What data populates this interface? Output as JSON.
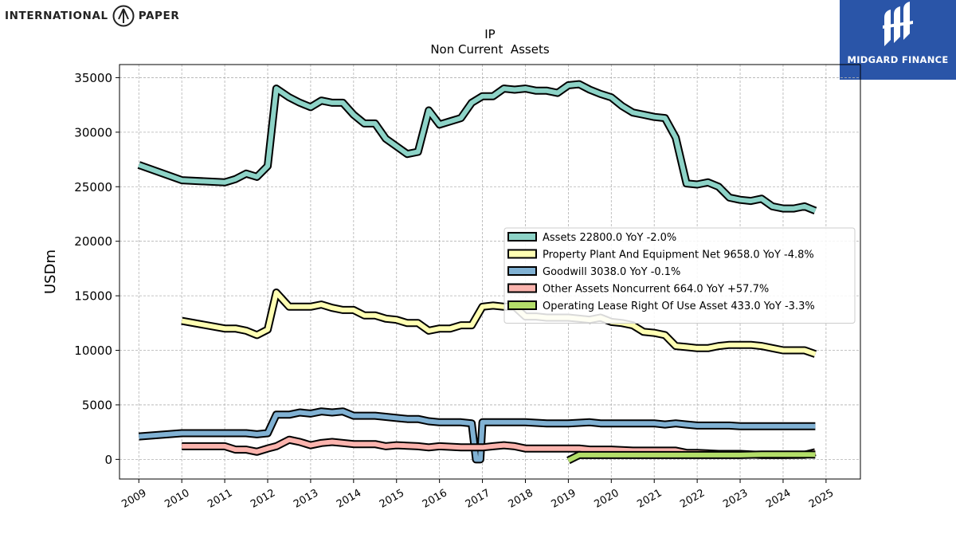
{
  "logo_left": {
    "text_left": "INTERNATIONAL",
    "text_right": "PAPER"
  },
  "logo_right": {
    "text": "MIDGARD FINANCE",
    "bg_color": "#2a55a8"
  },
  "chart_data": {
    "type": "line",
    "title": "IP",
    "subtitle": "Non Current  Assets",
    "xlabel": "",
    "ylabel": "USDm",
    "xlim": [
      2008.55,
      2025.8
    ],
    "ylim": [
      -1800,
      36200
    ],
    "x_ticks": [
      "2009",
      "2010",
      "2011",
      "2012",
      "2013",
      "2014",
      "2015",
      "2016",
      "2017",
      "2018",
      "2019",
      "2020",
      "2021",
      "2022",
      "2023",
      "2024",
      "2025"
    ],
    "y_ticks": [
      0,
      5000,
      10000,
      15000,
      20000,
      25000,
      30000,
      35000
    ],
    "y_tick_labels": [
      "0",
      "5000",
      "10000",
      "15000",
      "20000",
      "25000",
      "30000",
      "35000"
    ],
    "grid": true,
    "legend_position": "center-right",
    "series": [
      {
        "name": "Assets",
        "legend": "Assets  22800.0 YoY -2.0%",
        "color": "#8dd3c7",
        "points": [
          [
            2009.0,
            27000
          ],
          [
            2010.0,
            25600
          ],
          [
            2011.0,
            25400
          ],
          [
            2011.25,
            25700
          ],
          [
            2011.5,
            26200
          ],
          [
            2011.75,
            25900
          ],
          [
            2012.0,
            26900
          ],
          [
            2012.2,
            34000
          ],
          [
            2012.5,
            33200
          ],
          [
            2012.75,
            32700
          ],
          [
            2013.0,
            32300
          ],
          [
            2013.25,
            32900
          ],
          [
            2013.5,
            32700
          ],
          [
            2013.75,
            32700
          ],
          [
            2014.0,
            31600
          ],
          [
            2014.25,
            30800
          ],
          [
            2014.5,
            30800
          ],
          [
            2014.75,
            29400
          ],
          [
            2015.0,
            28700
          ],
          [
            2015.25,
            28000
          ],
          [
            2015.5,
            28200
          ],
          [
            2015.75,
            32000
          ],
          [
            2016.0,
            30700
          ],
          [
            2016.25,
            31000
          ],
          [
            2016.5,
            31300
          ],
          [
            2016.75,
            32700
          ],
          [
            2017.0,
            33300
          ],
          [
            2017.25,
            33300
          ],
          [
            2017.5,
            34000
          ],
          [
            2017.75,
            33900
          ],
          [
            2018.0,
            34000
          ],
          [
            2018.25,
            33800
          ],
          [
            2018.5,
            33800
          ],
          [
            2018.75,
            33600
          ],
          [
            2019.0,
            34300
          ],
          [
            2019.25,
            34400
          ],
          [
            2019.5,
            33900
          ],
          [
            2019.75,
            33500
          ],
          [
            2020.0,
            33200
          ],
          [
            2020.25,
            32400
          ],
          [
            2020.5,
            31800
          ],
          [
            2020.75,
            31600
          ],
          [
            2021.0,
            31400
          ],
          [
            2021.25,
            31300
          ],
          [
            2021.5,
            29500
          ],
          [
            2021.75,
            25300
          ],
          [
            2022.0,
            25200
          ],
          [
            2022.25,
            25400
          ],
          [
            2022.5,
            25000
          ],
          [
            2022.75,
            24000
          ],
          [
            2023.0,
            23800
          ],
          [
            2023.25,
            23700
          ],
          [
            2023.5,
            23900
          ],
          [
            2023.75,
            23200
          ],
          [
            2024.0,
            23000
          ],
          [
            2024.25,
            23000
          ],
          [
            2024.5,
            23200
          ],
          [
            2024.75,
            22800
          ]
        ]
      },
      {
        "name": "Property Plant And Equipment Net",
        "legend": "Property Plant And Equipment Net  9658.0 YoY -4.8%",
        "color": "#ffffb3",
        "points": [
          [
            2010.0,
            12700
          ],
          [
            2011.0,
            12000
          ],
          [
            2011.25,
            12000
          ],
          [
            2011.5,
            11800
          ],
          [
            2011.75,
            11400
          ],
          [
            2012.0,
            11900
          ],
          [
            2012.2,
            15300
          ],
          [
            2012.5,
            14000
          ],
          [
            2012.75,
            14000
          ],
          [
            2013.0,
            14000
          ],
          [
            2013.25,
            14200
          ],
          [
            2013.5,
            13900
          ],
          [
            2013.75,
            13700
          ],
          [
            2014.0,
            13700
          ],
          [
            2014.25,
            13200
          ],
          [
            2014.5,
            13200
          ],
          [
            2014.75,
            12900
          ],
          [
            2015.0,
            12800
          ],
          [
            2015.25,
            12500
          ],
          [
            2015.5,
            12500
          ],
          [
            2015.75,
            11800
          ],
          [
            2016.0,
            12000
          ],
          [
            2016.25,
            12000
          ],
          [
            2016.5,
            12300
          ],
          [
            2016.75,
            12300
          ],
          [
            2017.0,
            14000
          ],
          [
            2017.25,
            14100
          ],
          [
            2017.5,
            14000
          ],
          [
            2017.75,
            14000
          ],
          [
            2018.0,
            13100
          ],
          [
            2018.25,
            13100
          ],
          [
            2018.5,
            13000
          ],
          [
            2018.75,
            13000
          ],
          [
            2019.0,
            13000
          ],
          [
            2019.25,
            12900
          ],
          [
            2019.5,
            12800
          ],
          [
            2019.75,
            13000
          ],
          [
            2020.0,
            12600
          ],
          [
            2020.25,
            12500
          ],
          [
            2020.5,
            12300
          ],
          [
            2020.75,
            11700
          ],
          [
            2021.0,
            11600
          ],
          [
            2021.25,
            11400
          ],
          [
            2021.5,
            10400
          ],
          [
            2021.75,
            10300
          ],
          [
            2022.0,
            10200
          ],
          [
            2022.25,
            10200
          ],
          [
            2022.5,
            10400
          ],
          [
            2022.75,
            10500
          ],
          [
            2023.0,
            10500
          ],
          [
            2023.25,
            10500
          ],
          [
            2023.5,
            10400
          ],
          [
            2023.75,
            10200
          ],
          [
            2024.0,
            10000
          ],
          [
            2024.25,
            10000
          ],
          [
            2024.5,
            10000
          ],
          [
            2024.75,
            9658
          ]
        ]
      },
      {
        "name": "Goodwill",
        "legend": "Goodwill  3038.0 YoY -0.1%",
        "color": "#80b1d3",
        "points": [
          [
            2009.0,
            2100
          ],
          [
            2010.0,
            2400
          ],
          [
            2011.0,
            2400
          ],
          [
            2011.5,
            2400
          ],
          [
            2011.75,
            2300
          ],
          [
            2012.0,
            2400
          ],
          [
            2012.2,
            4100
          ],
          [
            2012.5,
            4100
          ],
          [
            2012.75,
            4300
          ],
          [
            2013.0,
            4200
          ],
          [
            2013.25,
            4400
          ],
          [
            2013.5,
            4300
          ],
          [
            2013.75,
            4400
          ],
          [
            2014.0,
            4000
          ],
          [
            2014.25,
            4000
          ],
          [
            2014.5,
            4000
          ],
          [
            2014.75,
            3900
          ],
          [
            2015.0,
            3800
          ],
          [
            2015.25,
            3700
          ],
          [
            2015.5,
            3700
          ],
          [
            2015.75,
            3500
          ],
          [
            2016.0,
            3400
          ],
          [
            2016.5,
            3400
          ],
          [
            2016.75,
            3300
          ],
          [
            2016.85,
            0
          ],
          [
            2016.95,
            0
          ],
          [
            2017.0,
            3400
          ],
          [
            2017.5,
            3400
          ],
          [
            2018.0,
            3400
          ],
          [
            2018.5,
            3300
          ],
          [
            2019.0,
            3300
          ],
          [
            2019.5,
            3400
          ],
          [
            2019.75,
            3300
          ],
          [
            2020.0,
            3300
          ],
          [
            2020.5,
            3300
          ],
          [
            2021.0,
            3300
          ],
          [
            2021.25,
            3200
          ],
          [
            2021.5,
            3300
          ],
          [
            2021.75,
            3200
          ],
          [
            2022.0,
            3100
          ],
          [
            2022.5,
            3100
          ],
          [
            2022.75,
            3100
          ],
          [
            2023.0,
            3038
          ],
          [
            2024.0,
            3038
          ],
          [
            2024.75,
            3038
          ]
        ]
      },
      {
        "name": "Other Assets Noncurrent",
        "legend": "Other Assets Noncurrent  664.0 YoY +57.7%",
        "color": "#fbb4ae",
        "points": [
          [
            2010.0,
            1200
          ],
          [
            2011.0,
            1200
          ],
          [
            2011.25,
            900
          ],
          [
            2011.5,
            900
          ],
          [
            2011.75,
            700
          ],
          [
            2012.0,
            1000
          ],
          [
            2012.2,
            1200
          ],
          [
            2012.5,
            1800
          ],
          [
            2012.75,
            1600
          ],
          [
            2013.0,
            1300
          ],
          [
            2013.25,
            1500
          ],
          [
            2013.5,
            1600
          ],
          [
            2013.75,
            1500
          ],
          [
            2014.0,
            1400
          ],
          [
            2014.5,
            1400
          ],
          [
            2014.75,
            1200
          ],
          [
            2015.0,
            1300
          ],
          [
            2015.5,
            1200
          ],
          [
            2015.75,
            1100
          ],
          [
            2016.0,
            1200
          ],
          [
            2016.5,
            1100
          ],
          [
            2017.0,
            1100
          ],
          [
            2017.25,
            1200
          ],
          [
            2017.5,
            1300
          ],
          [
            2017.75,
            1200
          ],
          [
            2018.0,
            1000
          ],
          [
            2018.5,
            1000
          ],
          [
            2019.0,
            1000
          ],
          [
            2019.25,
            1000
          ],
          [
            2019.5,
            900
          ],
          [
            2019.75,
            900
          ],
          [
            2020.0,
            900
          ],
          [
            2020.5,
            800
          ],
          [
            2021.0,
            800
          ],
          [
            2021.5,
            800
          ],
          [
            2021.75,
            600
          ],
          [
            2022.0,
            600
          ],
          [
            2022.5,
            500
          ],
          [
            2023.0,
            500
          ],
          [
            2023.5,
            400
          ],
          [
            2024.0,
            400
          ],
          [
            2024.5,
            421
          ],
          [
            2024.75,
            664
          ]
        ]
      },
      {
        "name": "Operating Lease Right Of Use Asset",
        "legend": "Operating Lease Right Of Use Asset  433.0 YoY -3.3%",
        "color": "#b3de69",
        "points": [
          [
            2019.0,
            -100
          ],
          [
            2019.25,
            400
          ],
          [
            2019.5,
            400
          ],
          [
            2020.0,
            400
          ],
          [
            2020.5,
            400
          ],
          [
            2021.0,
            400
          ],
          [
            2021.5,
            400
          ],
          [
            2022.0,
            400
          ],
          [
            2022.5,
            400
          ],
          [
            2023.0,
            400
          ],
          [
            2023.5,
            450
          ],
          [
            2024.0,
            450
          ],
          [
            2024.25,
            448
          ],
          [
            2024.5,
            448
          ],
          [
            2024.75,
            433
          ]
        ]
      }
    ]
  }
}
